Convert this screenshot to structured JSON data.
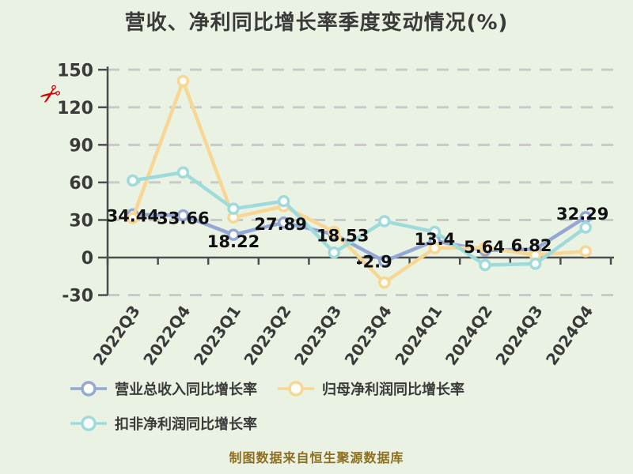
{
  "title": "营收、净利同比增长率季度变动情况(%)",
  "watermark": "✂",
  "footer": "制图数据来自恒生聚源数据库",
  "colors": {
    "background": "#eaf3e3",
    "axis": "#4d4d4d",
    "gridline": "#c9c9c9",
    "tick_label": "#3a3a3a",
    "data_label": "#101010",
    "title": "#3a3a3a",
    "footer_text": "#8d6e1f",
    "watermark_red": "#d40000"
  },
  "chart_data": {
    "type": "line",
    "title": "营收、净利同比增长率季度变动情况(%)",
    "categories": [
      "2022Q3",
      "2022Q4",
      "2023Q1",
      "2023Q2",
      "2023Q3",
      "2023Q4",
      "2024Q1",
      "2024Q2",
      "2024Q3",
      "2024Q4"
    ],
    "series": [
      {
        "name": "营业总收入同比增长率",
        "color": "#93a8d4",
        "values": [
          34.44,
          33.66,
          18.22,
          27.89,
          18.53,
          -2.9,
          13.4,
          5.64,
          6.82,
          32.29
        ],
        "labels": [
          "34.44",
          "33.66",
          "18.22",
          "27.89",
          "18.53",
          "-2.9",
          "13.4",
          "5.64",
          "6.82",
          "32.29"
        ]
      },
      {
        "name": "归母净利润同比增长率",
        "color": "#f8d694",
        "values": [
          31.5,
          141,
          32,
          41,
          20.5,
          -20,
          7.5,
          8,
          2,
          5
        ],
        "labels": null
      },
      {
        "name": "扣非净利润同比增长率",
        "color": "#9fdbdb",
        "values": [
          61.5,
          68,
          39,
          45,
          4,
          29,
          20.5,
          -6,
          -5,
          24
        ],
        "labels": null
      }
    ],
    "xlabel": "",
    "ylabel": "%",
    "ylim": [
      -30,
      150
    ],
    "yticks": [
      150,
      120,
      90,
      60,
      30,
      0,
      -30
    ],
    "grid": "dashed-horizontal",
    "legend_position": "bottom"
  }
}
